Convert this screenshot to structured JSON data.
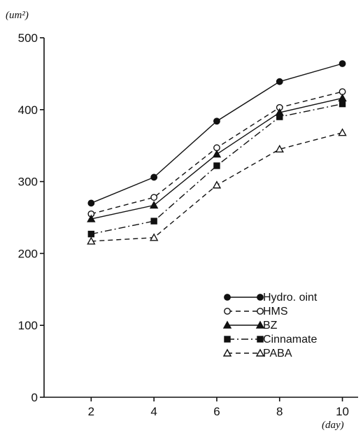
{
  "chart_data": {
    "type": "line",
    "y_unit_label": "(um²)",
    "x_unit_label": "(day)",
    "x": [
      2,
      4,
      6,
      8,
      10
    ],
    "xlim": [
      0.5,
      10.5
    ],
    "ylim": [
      0,
      500
    ],
    "x_ticks": [
      "2",
      "4",
      "6",
      "8",
      "10"
    ],
    "y_ticks": [
      "0",
      "100",
      "200",
      "300",
      "400",
      "500"
    ],
    "grid": false,
    "legend_position": "lower-right",
    "series": [
      {
        "name": "Hydro. oint",
        "values": [
          270,
          306,
          384,
          439,
          464
        ],
        "marker": "filled-circle",
        "line": "solid"
      },
      {
        "name": "HMS",
        "values": [
          255,
          278,
          347,
          403,
          425
        ],
        "marker": "open-circle",
        "line": "dashed"
      },
      {
        "name": "BZ",
        "values": [
          248,
          267,
          338,
          396,
          416
        ],
        "marker": "filled-triangle",
        "line": "solid"
      },
      {
        "name": "Cinnamate",
        "values": [
          227,
          245,
          322,
          390,
          408
        ],
        "marker": "filled-square",
        "line": "dash-dot"
      },
      {
        "name": "PABA",
        "values": [
          217,
          222,
          295,
          345,
          368
        ],
        "marker": "open-triangle",
        "line": "dashed"
      }
    ]
  }
}
